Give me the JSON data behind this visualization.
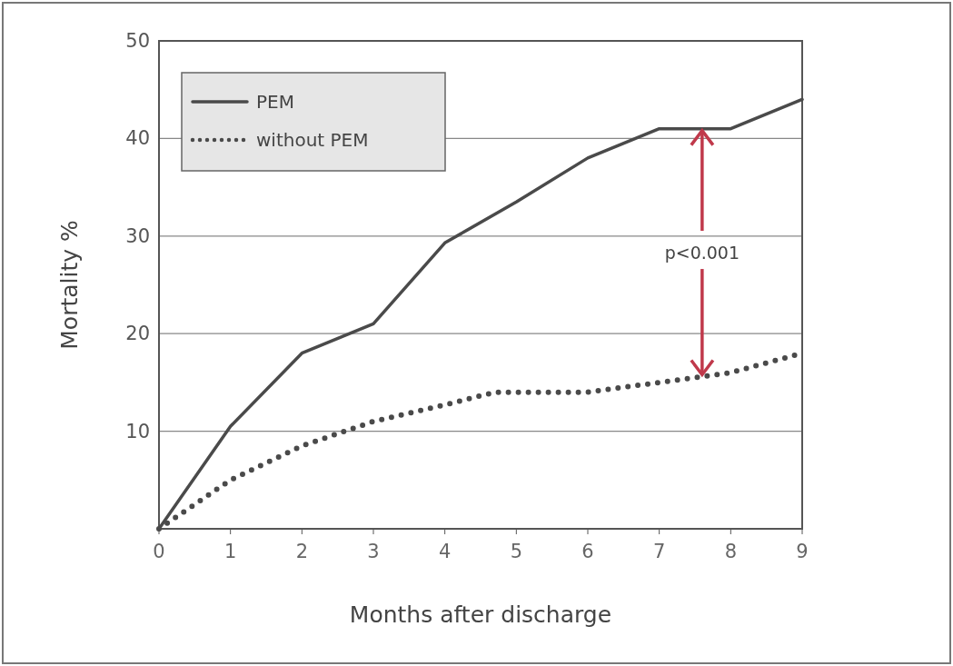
{
  "chart_data": {
    "type": "line",
    "xlabel": "Months after discharge",
    "ylabel": "Mortality %",
    "xlim": [
      0,
      9
    ],
    "xticks": [
      0,
      1,
      2,
      3,
      4,
      5,
      6,
      7,
      8,
      9
    ],
    "ylim": [
      0,
      50
    ],
    "yticks": [
      10,
      20,
      30,
      40,
      50
    ],
    "grid": "y",
    "legend": "top left",
    "series": [
      {
        "name": "PEM",
        "color": "#4a4a4a",
        "line_style": "solid",
        "x": [
          0,
          1,
          2,
          3,
          4,
          5,
          6,
          7,
          8,
          9
        ],
        "values": [
          0,
          10.5,
          18,
          21,
          29.3,
          33.5,
          38,
          41,
          41,
          44
        ]
      },
      {
        "name": "without PEM",
        "color": "#4a4a4a",
        "line_style": "dotted",
        "x": [
          0,
          1,
          2,
          3,
          4,
          4.7,
          6,
          7,
          8,
          9
        ],
        "values": [
          0,
          5,
          8.5,
          11,
          12.7,
          14,
          14,
          15,
          16,
          18
        ]
      }
    ],
    "annotations": [
      {
        "text": "p<0.001",
        "x": 7.6,
        "y": 41
      }
    ]
  }
}
